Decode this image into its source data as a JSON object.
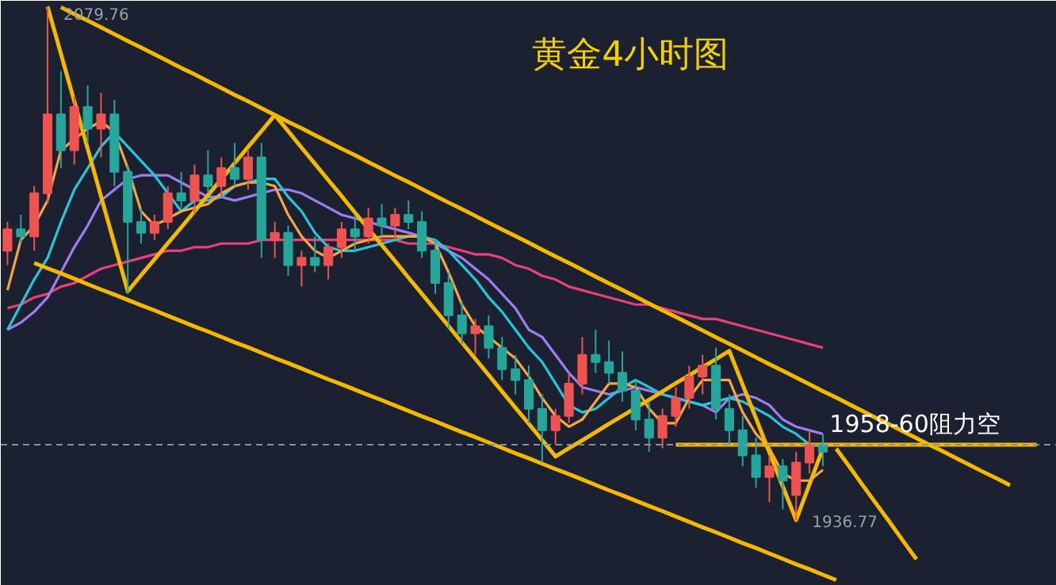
{
  "chart_data": {
    "type": "candlestick",
    "title": "黄金4小时图",
    "categories": [
      null,
      null,
      null,
      null,
      null,
      null,
      null,
      null,
      null,
      null,
      null,
      null,
      null,
      null,
      null,
      null,
      null,
      null,
      null,
      null,
      null,
      null,
      null,
      null,
      null,
      null,
      null,
      null,
      null,
      null,
      null,
      null,
      null,
      null,
      null,
      null,
      null,
      null,
      null,
      null,
      null,
      null,
      null,
      null,
      null,
      null,
      null,
      null,
      null,
      null,
      null,
      null,
      null,
      null,
      null,
      null,
      null,
      null,
      null,
      null,
      null,
      null,
      null,
      null,
      null,
      null,
      null,
      null,
      null,
      null,
      null,
      null,
      null,
      null,
      null,
      null,
      null,
      null,
      null
    ],
    "ohlc": [
      [
        2012,
        2020,
        2008,
        2018
      ],
      [
        2018,
        2022,
        2014,
        2016
      ],
      [
        2016,
        2030,
        2012,
        2028
      ],
      [
        2028,
        2079.76,
        2025,
        2050
      ],
      [
        2050,
        2062,
        2035,
        2040
      ],
      [
        2040,
        2055,
        2036,
        2052
      ],
      [
        2052,
        2058,
        2042,
        2046
      ],
      [
        2046,
        2056,
        2038,
        2050
      ],
      [
        2050,
        2054,
        2030,
        2034
      ],
      [
        2034,
        2036,
        2000,
        2020
      ],
      [
        2020,
        2024,
        2014,
        2017
      ],
      [
        2017,
        2022,
        2015,
        2020
      ],
      [
        2020,
        2030,
        2018,
        2028
      ],
      [
        2028,
        2034,
        2024,
        2026
      ],
      [
        2026,
        2036,
        2022,
        2033
      ],
      [
        2033,
        2040,
        2028,
        2030
      ],
      [
        2030,
        2038,
        2027,
        2035
      ],
      [
        2035,
        2042,
        2030,
        2032
      ],
      [
        2032,
        2040,
        2029,
        2038
      ],
      [
        2038,
        2042,
        2010,
        2015
      ],
      [
        2015,
        2020,
        2010,
        2017
      ],
      [
        2017,
        2019,
        2005,
        2008
      ],
      [
        2008,
        2012,
        2002,
        2010
      ],
      [
        2010,
        2016,
        2006,
        2008
      ],
      [
        2008,
        2014,
        2004,
        2013
      ],
      [
        2013,
        2020,
        2010,
        2018
      ],
      [
        2018,
        2022,
        2012,
        2016
      ],
      [
        2016,
        2024,
        2014,
        2021
      ],
      [
        2021,
        2025,
        2016,
        2019
      ],
      [
        2019,
        2024,
        2015,
        2022
      ],
      [
        2022,
        2026,
        2018,
        2020
      ],
      [
        2020,
        2023,
        2010,
        2012
      ],
      [
        2012,
        2015,
        2000,
        2003
      ],
      [
        2003,
        2006,
        1990,
        1994
      ],
      [
        1994,
        1998,
        1986,
        1989
      ],
      [
        1989,
        1993,
        1983,
        1991
      ],
      [
        1991,
        1994,
        1982,
        1985
      ],
      [
        1985,
        1988,
        1976,
        1979
      ],
      [
        1979,
        1983,
        1972,
        1976
      ],
      [
        1976,
        1980,
        1964,
        1968
      ],
      [
        1968,
        1972,
        1953,
        1962
      ],
      [
        1962,
        1968,
        1958,
        1966
      ],
      [
        1966,
        1978,
        1964,
        1975
      ],
      [
        1975,
        1988,
        1972,
        1983
      ],
      [
        1983,
        1990,
        1978,
        1981
      ],
      [
        1981,
        1987,
        1975,
        1978
      ],
      [
        1978,
        1984,
        1970,
        1973
      ],
      [
        1973,
        1976,
        1962,
        1965
      ],
      [
        1965,
        1970,
        1956,
        1960
      ],
      [
        1960,
        1968,
        1957,
        1966
      ],
      [
        1966,
        1974,
        1963,
        1971
      ],
      [
        1971,
        1980,
        1968,
        1977
      ],
      [
        1977,
        1983,
        1972,
        1980
      ],
      [
        1980,
        1985,
        1965,
        1968
      ],
      [
        1968,
        1972,
        1958,
        1962
      ],
      [
        1962,
        1966,
        1952,
        1955
      ],
      [
        1955,
        1960,
        1946,
        1949
      ],
      [
        1949,
        1955,
        1942,
        1952
      ],
      [
        1952,
        1954,
        1940,
        1948
      ],
      [
        1944,
        1956,
        1936.77,
        1953
      ],
      [
        1953,
        1962,
        1950,
        1958
      ],
      [
        1958,
        1961,
        1952,
        1956
      ],
      null,
      null,
      null,
      null,
      null,
      null,
      null,
      null,
      null,
      null,
      null,
      null,
      null,
      null,
      null,
      null,
      null
    ],
    "colors": [
      "#ef5350",
      "#26a69a",
      "#ef5350",
      "#ef5350",
      "#26a69a",
      "#ef5350",
      "#26a69a",
      "#ef5350",
      "#26a69a",
      "#26a69a",
      "#26a69a",
      "#ef5350",
      "#ef5350",
      "#26a69a",
      "#ef5350",
      "#26a69a",
      "#ef5350",
      "#26a69a",
      "#ef5350",
      "#26a69a",
      "#ef5350",
      "#26a69a",
      "#ef5350",
      "#26a69a",
      "#ef5350",
      "#ef5350",
      "#26a69a",
      "#ef5350",
      "#26a69a",
      "#ef5350",
      "#26a69a",
      "#26a69a",
      "#26a69a",
      "#26a69a",
      "#26a69a",
      "#ef5350",
      "#26a69a",
      "#26a69a",
      "#26a69a",
      "#26a69a",
      "#26a69a",
      "#ef5350",
      "#ef5350",
      "#ef5350",
      "#26a69a",
      "#26a69a",
      "#26a69a",
      "#26a69a",
      "#26a69a",
      "#ef5350",
      "#ef5350",
      "#ef5350",
      "#ef5350",
      "#26a69a",
      "#26a69a",
      "#26a69a",
      "#26a69a",
      "#ef5350",
      "#26a69a",
      "#ef5350",
      "#ef5350",
      "#26a69a",
      null,
      null,
      null,
      null,
      null,
      null,
      null,
      null,
      null,
      null,
      null,
      null,
      null,
      null,
      null,
      null,
      null
    ],
    "series": [
      {
        "type": "line",
        "color": "#e8407a",
        "values": [
          1996,
          1997,
          1999,
          2000,
          2002,
          2003,
          2005,
          2007,
          2008,
          2009,
          2010,
          2011,
          2012,
          2012,
          2013,
          2013,
          2014,
          2014,
          2014,
          2015,
          2015,
          2015,
          2015,
          2015,
          2015,
          2015,
          2015,
          2015,
          2015,
          2015,
          2014,
          2014,
          2014,
          2013,
          2012,
          2011,
          2011,
          2010,
          2008,
          2007,
          2005,
          2004,
          2002,
          2001,
          2000,
          1999,
          1998,
          1997,
          1997,
          1996,
          1995,
          1994,
          1993,
          1993,
          1992,
          1991,
          1990,
          1989,
          1988,
          1987,
          1986,
          1985,
          null,
          null,
          null,
          null,
          null,
          null,
          null,
          null,
          null,
          null,
          null,
          null,
          null,
          null,
          null,
          null,
          null
        ]
      },
      {
        "type": "line",
        "color": "#a07cf0",
        "values": [
          1990,
          1992,
          1995,
          1999,
          2006,
          2013,
          2019,
          2026,
          2029,
          2032,
          2033,
          2033,
          2033,
          2031,
          2029,
          2027,
          2027,
          2026,
          2027,
          2028,
          2029,
          2029,
          2028,
          2026,
          2024,
          2022,
          2021,
          2020,
          2019,
          2018,
          2017,
          2016,
          2014,
          2012,
          2010,
          2007,
          2004,
          2000,
          1996,
          1990,
          1988,
          1983,
          1978,
          1974,
          1973,
          1972,
          1973,
          1974,
          1973,
          1972,
          1971,
          1970,
          1969,
          1967,
          1971,
          1972,
          1971,
          1969,
          1965,
          1963,
          1962,
          1961,
          null,
          null,
          null,
          null,
          null,
          null,
          null,
          null,
          null,
          null,
          null,
          null,
          null,
          null,
          null,
          null,
          null
        ]
      },
      {
        "type": "line",
        "color": "#26c6da",
        "values": [
          1990,
          1997,
          2004,
          2010,
          2020,
          2029,
          2035,
          2041,
          2045,
          2041,
          2037,
          2033,
          2028,
          2023,
          2026,
          2026,
          2027,
          2030,
          2031,
          2032,
          2032,
          2027,
          2023,
          2017,
          2013,
          2012,
          2012,
          2013,
          2014,
          2015,
          2016,
          2016,
          2015,
          2012,
          2008,
          2004,
          1999,
          1995,
          1990,
          1985,
          1981,
          1975,
          1969,
          1967,
          1968,
          1971,
          1974,
          1976,
          1974,
          1972,
          1971,
          1970,
          1969,
          1970,
          1971,
          1970,
          1968,
          1966,
          1963,
          1961,
          1958,
          null,
          null,
          null,
          null,
          null,
          null,
          null,
          null,
          null,
          null,
          null,
          null,
          null,
          null,
          null,
          null,
          null,
          null
        ]
      },
      {
        "type": "line",
        "color": "#f7a540",
        "values": [
          2001,
          2015,
          2019,
          2026,
          2040,
          2043,
          2046,
          2048,
          2045,
          2035,
          2023,
          2019,
          2021,
          2023,
          2024,
          2025,
          2028,
          2030,
          2031,
          2031,
          2030,
          2022,
          2016,
          2012,
          2010,
          2012,
          2014,
          2015,
          2016,
          2016,
          2016,
          2016,
          2014,
          2006,
          1997,
          1991,
          1988,
          1985,
          1982,
          1977,
          1971,
          1966,
          1963,
          1965,
          1970,
          1975,
          1975,
          1974,
          1968,
          1964,
          1964,
          1971,
          1976,
          1976,
          1976,
          1967,
          1961,
          1957,
          1950,
          1948,
          1948,
          1951,
          null,
          null,
          null,
          null,
          null,
          null,
          null,
          null,
          null,
          null,
          null,
          null,
          null,
          null,
          null,
          null,
          null
        ]
      },
      {
        "type": "line",
        "color": "#f5b800",
        "values": [
          null,
          null,
          null,
          null,
          2079.8,
          2077.9,
          2076.1,
          2074.2,
          2072.3,
          2070.4,
          2068.6,
          2066.7,
          2064.8,
          2062.9,
          2061.1,
          2059.2,
          2057.3,
          2055.4,
          2053.6,
          2051.7,
          2049.8,
          2047.9,
          2046.1,
          2044.2,
          2042.3,
          2040.4,
          2038.6,
          2036.7,
          2034.8,
          2032.9,
          2031.1,
          2029.2,
          2027.3,
          2025.4,
          2023.6,
          2021.7,
          2019.8,
          2017.9,
          2016.1,
          2014.2,
          2012.3,
          2010.4,
          2008.6,
          2006.7,
          2004.8,
          2002.9,
          2001.1,
          1999.2,
          1997.3,
          1995.4,
          1993.6,
          1991.7,
          1989.8,
          1987.9,
          1986.1,
          1984.2,
          1982.3,
          1980.4,
          1978.6,
          1976.7,
          1974.8,
          1972.9,
          1971.1,
          1969.2,
          1967.3,
          1965.4,
          1963.6,
          1961.7,
          1959.8,
          1957.9,
          1956.1,
          1954.2,
          1952.3,
          1950.4,
          1948.6,
          1946.7,
          null,
          null,
          null
        ]
      },
      {
        "type": "line",
        "color": "#f5b800",
        "values": [
          null,
          null,
          2008.6,
          2007.1,
          2005.7,
          2004.2,
          2002.7,
          2001.2,
          1999.8,
          1998.3,
          1996.8,
          1995.4,
          1993.9,
          1992.4,
          1990.9,
          1989.5,
          1988.0,
          1986.5,
          1985.1,
          1983.6,
          1982.1,
          1980.7,
          1979.2,
          1977.7,
          1976.2,
          1974.8,
          1973.3,
          1971.8,
          1970.4,
          1968.9,
          1967.4,
          1965.9,
          1964.5,
          1963.0,
          1961.5,
          1960.1,
          1958.6,
          1957.1,
          1955.6,
          1954.2,
          1952.7,
          1951.2,
          1949.8,
          1948.3,
          1946.8,
          1945.3,
          1943.9,
          1942.4,
          1940.9,
          1939.5,
          1938.0,
          1936.5,
          1935.0,
          1933.6,
          1932.1,
          1930.6,
          1929.2,
          1927.7,
          1926.2,
          1924.7,
          1923.3,
          1921.8,
          1920.3,
          null,
          null,
          null,
          null,
          null,
          null,
          null,
          null,
          null,
          null,
          null,
          null,
          null,
          null,
          null,
          null
        ]
      },
      {
        "type": "line",
        "color": "#f5b800",
        "values": [
          null,
          null,
          null,
          2080.0,
          2066.8,
          2053.6,
          2040.4,
          2027.1,
          2013.9,
          2000.7,
          2005.2,
          2009.6,
          2014.1,
          2018.5,
          2023.0,
          2027.5,
          2031.9,
          2036.4,
          2040.9,
          2045.3,
          2049.8,
          2045.3,
          2040.7,
          2036.2,
          2031.7,
          2027.2,
          2022.6,
          2018.1,
          2013.6,
          2009.1,
          2004.5,
          2000.0,
          1995.5,
          1991.0,
          1986.4,
          1981.9,
          1977.4,
          1972.8,
          1968.3,
          1963.8,
          1959.3,
          1954.7,
          1957.0,
          1959.2,
          1961.5,
          1963.8,
          1966.0,
          1968.3,
          1970.5,
          1972.8,
          1975.1,
          1977.3,
          1979.6,
          1981.8,
          1984.1,
          1974.7,
          1965.3,
          1955.8,
          1946.4,
          1937.0,
          1947.0,
          1956.9,
          null,
          null,
          null,
          null,
          null,
          null,
          null,
          null,
          null,
          null,
          null,
          null,
          null,
          null,
          null,
          null,
          null
        ]
      },
      {
        "type": "line",
        "color": "#f5b800",
        "values": [
          null,
          null,
          null,
          null,
          null,
          null,
          null,
          null,
          null,
          null,
          null,
          null,
          null,
          null,
          null,
          null,
          null,
          null,
          null,
          null,
          null,
          null,
          null,
          null,
          null,
          null,
          null,
          null,
          null,
          null,
          null,
          null,
          null,
          null,
          null,
          null,
          null,
          null,
          null,
          null,
          null,
          null,
          null,
          null,
          null,
          null,
          null,
          null,
          null,
          null,
          1958,
          1958,
          1958,
          1958,
          1958,
          1958,
          1958,
          1958,
          1958,
          1958,
          1958,
          1958,
          1958,
          1958,
          1958,
          1958,
          1958,
          1958,
          1958,
          1958,
          1958,
          1958,
          1958,
          1958,
          1958,
          1958,
          1958,
          1958,
          null
        ]
      },
      {
        "type": "line",
        "color": "#f5b800",
        "values": [
          null,
          null,
          null,
          null,
          null,
          null,
          null,
          null,
          null,
          null,
          null,
          null,
          null,
          null,
          null,
          null,
          null,
          null,
          null,
          null,
          null,
          null,
          null,
          null,
          null,
          null,
          null,
          null,
          null,
          null,
          null,
          null,
          null,
          null,
          null,
          null,
          null,
          null,
          null,
          null,
          null,
          null,
          null,
          null,
          null,
          null,
          null,
          null,
          null,
          null,
          null,
          null,
          null,
          null,
          null,
          null,
          null,
          null,
          null,
          null,
          null,
          null,
          1956.9,
          1951.8,
          1946.6,
          1941.5,
          1936.4,
          1931.2,
          1926.1,
          null,
          null,
          null,
          null,
          null,
          null,
          null,
          null,
          null,
          null
        ]
      }
    ],
    "ref_lines": [
      {
        "axis": "y",
        "value": 1958,
        "label": "1958-60阻力空",
        "color": "#8a8f99",
        "line_style": "dashed"
      }
    ],
    "annotations": [
      "2079.76",
      "1936.77"
    ],
    "tick_labels": false
  }
}
